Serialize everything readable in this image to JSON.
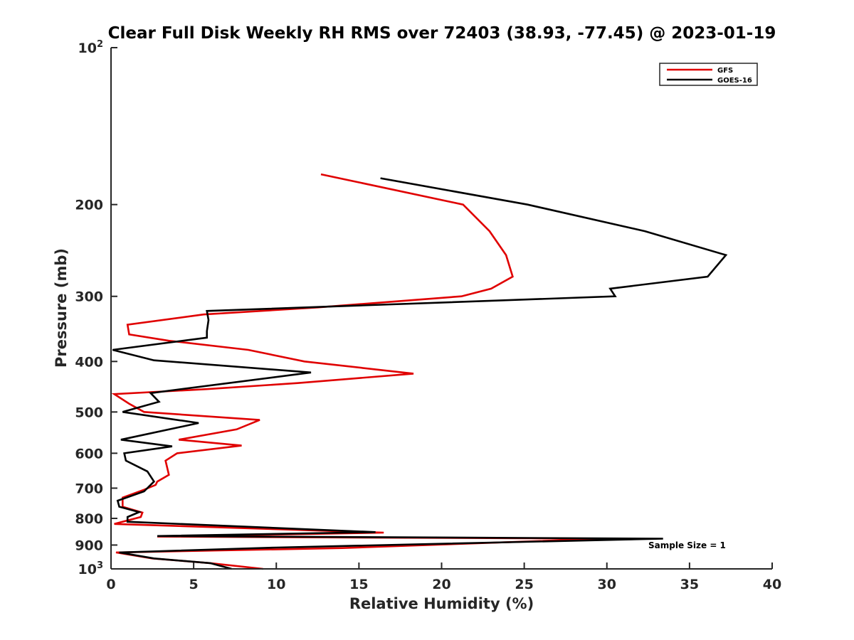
{
  "chart_data": {
    "type": "line",
    "title": "Clear Full Disk Weekly RH RMS over 72403 (38.93, -77.45) @ 2023-01-19",
    "xlabel": "Relative Humidity (%)",
    "ylabel": "Pressure (mb)",
    "xlim": [
      0,
      40
    ],
    "ylim": [
      100,
      1000
    ],
    "y_scale": "log",
    "y_reversed": true,
    "grid": false,
    "legend_position": "top-right",
    "x_ticks": [
      "0",
      "5",
      "10",
      "15",
      "20",
      "25",
      "30",
      "35",
      "40"
    ],
    "y_ticks": [
      {
        "value": 100,
        "base": "10",
        "exp": "2"
      },
      {
        "value": 200,
        "label": "200"
      },
      {
        "value": 300,
        "label": "300"
      },
      {
        "value": 400,
        "label": "400"
      },
      {
        "value": 500,
        "label": "500"
      },
      {
        "value": 600,
        "label": "600"
      },
      {
        "value": 700,
        "label": "700"
      },
      {
        "value": 800,
        "label": "800"
      },
      {
        "value": 900,
        "label": "900"
      },
      {
        "value": 1000,
        "base": "10",
        "exp": "3"
      }
    ],
    "annotation": "Sample Size = 1",
    "series": [
      {
        "name": "GFS",
        "color": "#e00000",
        "points": [
          [
            12.7,
            175
          ],
          [
            21.3,
            200
          ],
          [
            22.9,
            225
          ],
          [
            23.9,
            250
          ],
          [
            24.3,
            275
          ],
          [
            23.0,
            290
          ],
          [
            21.2,
            300
          ],
          [
            12.5,
            315
          ],
          [
            5.6,
            325
          ],
          [
            1.0,
            340
          ],
          [
            1.1,
            355
          ],
          [
            3.5,
            365
          ],
          [
            8.3,
            380
          ],
          [
            11.7,
            400
          ],
          [
            18.3,
            422
          ],
          [
            11.3,
            440
          ],
          [
            5.8,
            452
          ],
          [
            0.2,
            462
          ],
          [
            1.1,
            482
          ],
          [
            2.0,
            500
          ],
          [
            9.0,
            518
          ],
          [
            7.6,
            540
          ],
          [
            4.1,
            565
          ],
          [
            7.9,
            580
          ],
          [
            4.0,
            600
          ],
          [
            3.3,
            620
          ],
          [
            3.4,
            640
          ],
          [
            3.5,
            660
          ],
          [
            2.8,
            680
          ],
          [
            2.7,
            690
          ],
          [
            2.0,
            705
          ],
          [
            0.7,
            730
          ],
          [
            0.7,
            760
          ],
          [
            1.9,
            780
          ],
          [
            1.8,
            795
          ],
          [
            0.2,
            820
          ],
          [
            16.5,
            852
          ],
          [
            2.8,
            867
          ],
          [
            30.0,
            875
          ],
          [
            14.0,
            912
          ],
          [
            0.3,
            930
          ],
          [
            2.5,
            955
          ],
          [
            6.0,
            975
          ],
          [
            9.2,
            1000
          ]
        ]
      },
      {
        "name": "GOES-16",
        "color": "#000000",
        "points": [
          [
            16.3,
            178
          ],
          [
            25.2,
            200
          ],
          [
            32.3,
            225
          ],
          [
            37.2,
            250
          ],
          [
            36.1,
            275
          ],
          [
            30.2,
            290
          ],
          [
            30.5,
            300
          ],
          [
            5.8,
            320
          ],
          [
            5.9,
            333
          ],
          [
            5.8,
            350
          ],
          [
            5.8,
            360
          ],
          [
            0.1,
            380
          ],
          [
            2.6,
            398
          ],
          [
            12.1,
            420
          ],
          [
            2.4,
            460
          ],
          [
            2.9,
            478
          ],
          [
            0.7,
            500
          ],
          [
            5.3,
            525
          ],
          [
            0.6,
            565
          ],
          [
            3.7,
            582
          ],
          [
            0.8,
            600
          ],
          [
            0.9,
            620
          ],
          [
            2.2,
            650
          ],
          [
            2.6,
            680
          ],
          [
            2.0,
            710
          ],
          [
            0.4,
            740
          ],
          [
            0.5,
            760
          ],
          [
            1.7,
            778
          ],
          [
            1.0,
            795
          ],
          [
            1.0,
            812
          ],
          [
            16.0,
            850
          ],
          [
            2.8,
            865
          ],
          [
            33.4,
            875
          ],
          [
            10.0,
            910
          ],
          [
            0.5,
            930
          ],
          [
            2.6,
            955
          ],
          [
            6.0,
            975
          ],
          [
            7.3,
            1000
          ]
        ]
      }
    ]
  }
}
